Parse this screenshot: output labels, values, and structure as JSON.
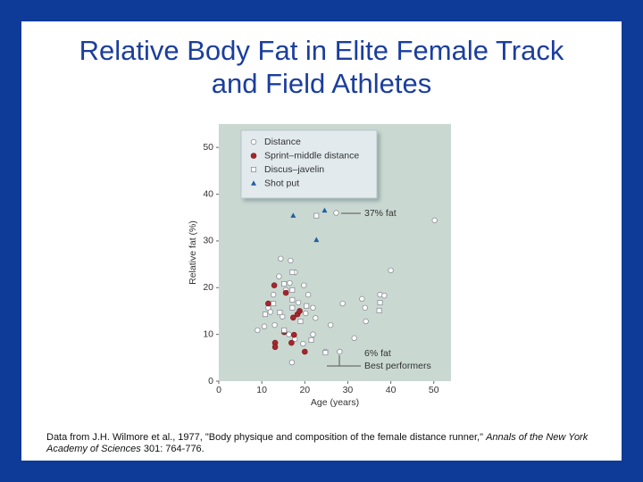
{
  "chart_data": {
    "type": "scatter",
    "title": "Relative Body Fat in Elite Female Track and Field Athletes",
    "x_label": "Age (years)",
    "y_label": "Relative fat (%)",
    "xlim": [
      0,
      54
    ],
    "ylim": [
      0,
      55
    ],
    "xticks": [
      0,
      10,
      20,
      30,
      40,
      50
    ],
    "yticks": [
      0,
      10,
      20,
      30,
      40,
      50
    ],
    "legend": "upper left",
    "annotations": [
      "37% fat",
      "6% fat",
      "Best performers"
    ],
    "source": {
      "text": "Data from J.H. Wilmore et al., 1977, \"Body physique and composition of the female distance runner,\"",
      "journal": "Annals of the New York Academy of Sciences",
      "citation": "301: 764-776."
    },
    "series": [
      {
        "name": "Distance",
        "color": "#8a8f96",
        "marker": "open-circle",
        "x": [
          27.3,
          50.2,
          40,
          14.4,
          16.7,
          28.8,
          33.3,
          37.5,
          38.5,
          34,
          34.2,
          31.5,
          24.8,
          28.1,
          9,
          10.6,
          11.5,
          12.7,
          14,
          15.6,
          17.7,
          19.8,
          20.8,
          21.9,
          14.8,
          16.3,
          17.7,
          19.6,
          21.9,
          20.2,
          13,
          18.5,
          22.5,
          16.5,
          12,
          17,
          26
        ],
        "values": [
          36,
          34.4,
          23.7,
          26.2,
          25.8,
          16.6,
          17.6,
          18.5,
          18.3,
          15.7,
          12.8,
          9.2,
          6.3,
          6.3,
          10.9,
          11.7,
          15.7,
          18.5,
          22.4,
          19.5,
          23.3,
          20.5,
          18.5,
          15.7,
          13.8,
          10,
          9,
          8,
          10,
          14.5,
          12,
          16.8,
          13.5,
          21,
          14.8,
          4,
          12
        ]
      },
      {
        "name": "Sprint–middle distance",
        "color": "#a5262c",
        "marker": "filled-circle",
        "x": [
          16.9,
          13.1,
          13.1,
          20,
          17.5,
          18.3,
          17.3,
          18.8,
          15.2,
          15.6,
          11.5,
          12.9
        ],
        "values": [
          8.2,
          8.2,
          7.3,
          6.3,
          9.9,
          14.3,
          13.6,
          15,
          10.5,
          18.9,
          16.6,
          20.5
        ]
      },
      {
        "name": "Discus–javelin",
        "color": "#8a8f96",
        "marker": "open-square",
        "x": [
          22.7,
          17.1,
          15.2,
          17.1,
          17.1,
          17.1,
          12.7,
          14.2,
          20.4,
          21.5,
          37.5,
          37.3,
          24.8,
          10.8,
          15.2,
          19
        ],
        "values": [
          35.4,
          23.3,
          20.8,
          19.5,
          17.4,
          15.7,
          16.6,
          14.7,
          16.1,
          8.8,
          16.8,
          15.1,
          6.1,
          14.3,
          10.9,
          12.8
        ]
      },
      {
        "name": "Shot put",
        "color": "#1f5fa0",
        "marker": "triangle",
        "x": [
          17.3,
          24.6,
          22.7
        ],
        "values": [
          35.4,
          36.5,
          30.2
        ]
      }
    ]
  }
}
